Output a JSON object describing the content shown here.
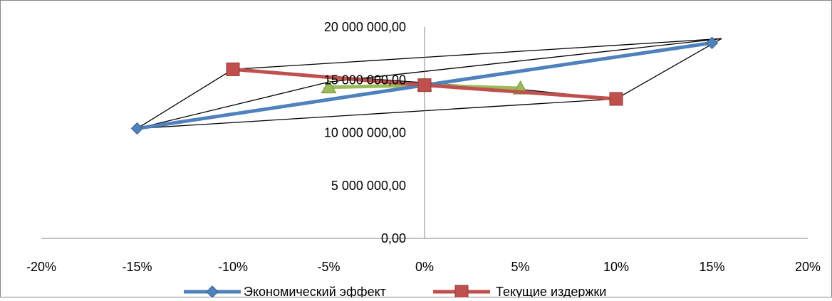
{
  "chart_data": {
    "type": "scatter",
    "title": "",
    "xlabel": "",
    "ylabel": "",
    "xlim": [
      -0.2,
      0.2
    ],
    "ylim": [
      0,
      20000000
    ],
    "x_ticks": [
      {
        "value": -0.2,
        "label": "-20%"
      },
      {
        "value": -0.15,
        "label": "-15%"
      },
      {
        "value": -0.1,
        "label": "-10%"
      },
      {
        "value": -0.05,
        "label": "-5%"
      },
      {
        "value": 0,
        "label": "0%"
      },
      {
        "value": 0.05,
        "label": "5%"
      },
      {
        "value": 0.1,
        "label": "10%"
      },
      {
        "value": 0.15,
        "label": "15%"
      },
      {
        "value": 0.2,
        "label": "20%"
      }
    ],
    "y_ticks": [
      {
        "value": 0,
        "label": "0,00"
      },
      {
        "value": 5000000,
        "label": "5 000 000,00"
      },
      {
        "value": 10000000,
        "label": "10 000 000,00"
      },
      {
        "value": 15000000,
        "label": "15 000 000,00"
      },
      {
        "value": 20000000,
        "label": "20 000 000,00"
      }
    ],
    "grid": false,
    "legend_position": "bottom",
    "series": [
      {
        "name": "Экономический эффект",
        "color": "#4f81bd",
        "marker": "diamond",
        "x": [
          -0.15,
          0,
          0.15
        ],
        "y": [
          10400000,
          14500000,
          18500000
        ]
      },
      {
        "name": "Текущие издержки",
        "color": "#c0504d",
        "marker": "square",
        "x": [
          -0.1,
          0,
          0.1
        ],
        "y": [
          16000000,
          14500000,
          13200000
        ]
      },
      {
        "name": "",
        "color": "#9bbb59",
        "marker": "triangle",
        "x": [
          -0.05,
          0,
          0.05
        ],
        "y": [
          14300000,
          14500000,
          14200000
        ]
      }
    ],
    "annotation_lines": [
      {
        "color": "#000000",
        "x": [
          -0.15,
          -0.1,
          0.155,
          0.1,
          -0.15
        ],
        "y": [
          10400000,
          16000000,
          18900000,
          13200000,
          10400000
        ]
      },
      {
        "color": "#000000",
        "x": [
          -0.15,
          -0.05,
          0.155
        ],
        "y": [
          10400000,
          14800000,
          18900000
        ]
      },
      {
        "color": "#000000",
        "x": [
          -0.1,
          0.05,
          0.1
        ],
        "y": [
          16000000,
          14100000,
          13200000
        ]
      }
    ]
  }
}
